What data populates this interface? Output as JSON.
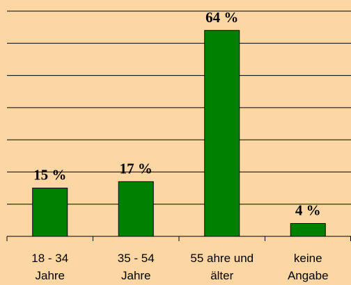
{
  "chart_data": {
    "type": "bar",
    "categories": [
      "18 - 34 Jahre",
      "35 - 54 Jahre",
      "55 ahre und älter",
      "keine Angabe"
    ],
    "values": [
      15,
      17,
      64,
      4
    ],
    "value_labels": [
      "15 %",
      "17 %",
      "64 %",
      "4 %"
    ],
    "color": "#008000",
    "ylim": [
      0,
      70
    ],
    "yticks": [
      0,
      10,
      20,
      30,
      40,
      50,
      60,
      70
    ],
    "grid": true
  }
}
